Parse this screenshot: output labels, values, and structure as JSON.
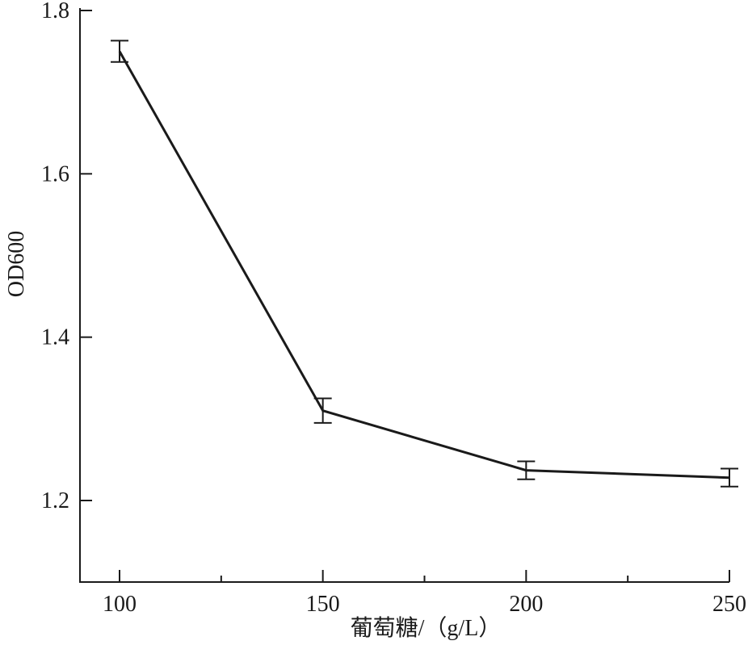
{
  "chart_data": {
    "type": "line",
    "title": "",
    "xlabel": "葡萄糖/（g/L）",
    "ylabel": "OD600",
    "xlim": [
      90,
      250
    ],
    "ylim": [
      1.1,
      1.8
    ],
    "x_ticks": [
      100,
      150,
      200,
      250
    ],
    "x_minor_ticks": [
      125,
      175,
      225
    ],
    "y_ticks": [
      1.2,
      1.4,
      1.6,
      1.8
    ],
    "grid": false,
    "series": [
      {
        "x": [
          100,
          150,
          200,
          250
        ],
        "values": [
          1.75,
          1.31,
          1.237,
          1.228
        ],
        "error": [
          0.013,
          0.015,
          0.011,
          0.011
        ],
        "color": "#1a1a1a"
      }
    ]
  }
}
